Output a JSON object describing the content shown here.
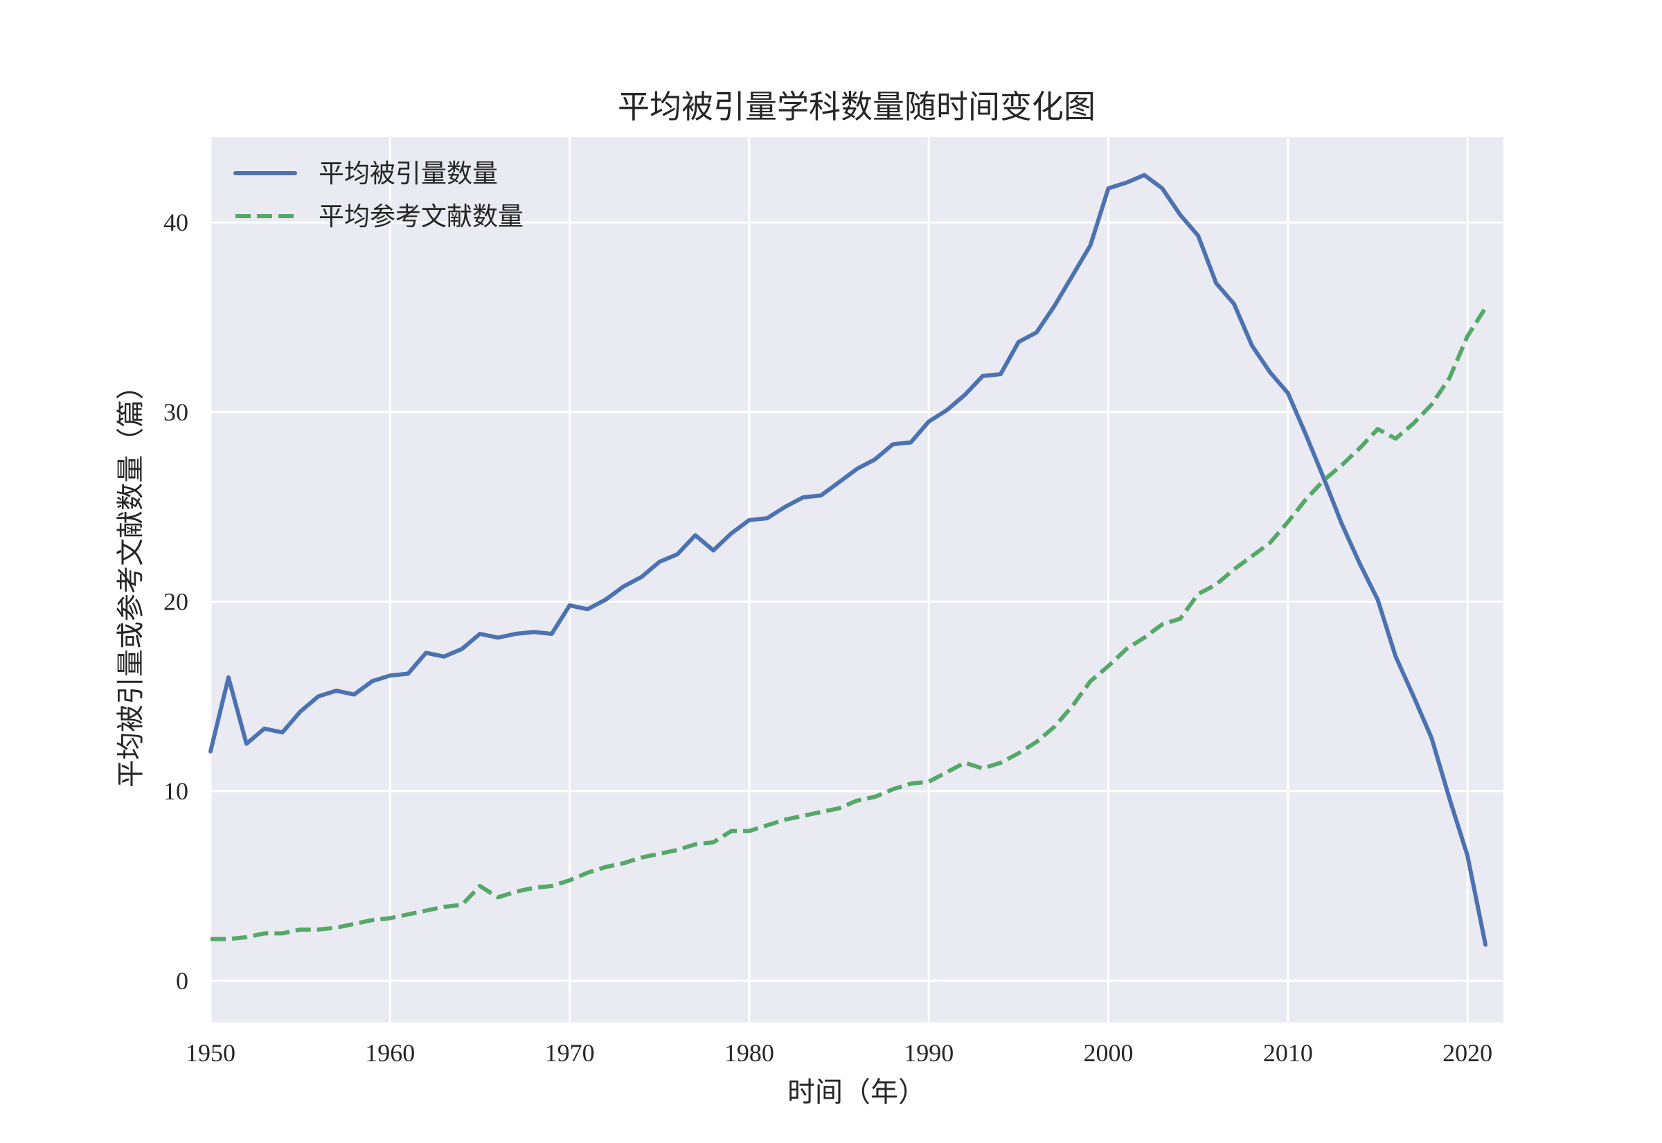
{
  "chart_data": {
    "type": "line",
    "title": "平均被引量学科数量随时间变化图",
    "xlabel": "时间（年）",
    "ylabel": "平均被引量或参考文献数量（篇）",
    "xlim": [
      1950,
      2022
    ],
    "ylim": [
      -2.2,
      44.5
    ],
    "xticks": [
      1950,
      1960,
      1970,
      1980,
      1990,
      2000,
      2010,
      2020
    ],
    "yticks": [
      0,
      10,
      20,
      30,
      40
    ],
    "grid": true,
    "background_color": "#eaeaf2",
    "grid_color": "#ffffff",
    "legend_position": "top-left",
    "x": [
      1950,
      1951,
      1952,
      1953,
      1954,
      1955,
      1956,
      1957,
      1958,
      1959,
      1960,
      1961,
      1962,
      1963,
      1964,
      1965,
      1966,
      1967,
      1968,
      1969,
      1970,
      1971,
      1972,
      1973,
      1974,
      1975,
      1976,
      1977,
      1978,
      1979,
      1980,
      1981,
      1982,
      1983,
      1984,
      1985,
      1986,
      1987,
      1988,
      1989,
      1990,
      1991,
      1992,
      1993,
      1994,
      1995,
      1996,
      1997,
      1998,
      1999,
      2000,
      2001,
      2002,
      2003,
      2004,
      2005,
      2006,
      2007,
      2008,
      2009,
      2010,
      2011,
      2012,
      2013,
      2014,
      2015,
      2016,
      2017,
      2018,
      2019,
      2020,
      2021
    ],
    "series": [
      {
        "name": "平均被引量数量",
        "color": "#4c72b0",
        "style": "solid",
        "values": [
          12.1,
          16.0,
          12.5,
          13.3,
          13.1,
          14.2,
          15.0,
          15.3,
          15.1,
          15.8,
          16.1,
          16.2,
          17.3,
          17.1,
          17.5,
          18.3,
          18.1,
          18.3,
          18.4,
          18.3,
          19.8,
          19.6,
          20.1,
          20.8,
          21.3,
          22.1,
          22.5,
          23.5,
          22.7,
          23.6,
          24.3,
          24.4,
          25.0,
          25.5,
          25.6,
          26.3,
          27.0,
          27.5,
          28.3,
          28.4,
          29.5,
          30.1,
          30.9,
          31.9,
          32.0,
          33.7,
          34.2,
          35.6,
          37.2,
          38.8,
          41.8,
          42.1,
          42.5,
          41.8,
          40.4,
          39.3,
          36.8,
          35.7,
          33.5,
          32.1,
          31.0,
          28.8,
          26.5,
          24.1,
          22.0,
          20.1,
          17.1,
          15.0,
          12.8,
          9.6,
          6.6,
          1.9
        ]
      },
      {
        "name": "平均参考文献数量",
        "color": "#55a868",
        "style": "dashed",
        "values": [
          2.2,
          2.2,
          2.3,
          2.5,
          2.5,
          2.7,
          2.7,
          2.8,
          3.0,
          3.2,
          3.3,
          3.5,
          3.7,
          3.9,
          4.0,
          5.0,
          4.4,
          4.7,
          4.9,
          5.0,
          5.3,
          5.7,
          6.0,
          6.2,
          6.5,
          6.7,
          6.9,
          7.2,
          7.3,
          7.9,
          7.9,
          8.2,
          8.5,
          8.7,
          8.9,
          9.1,
          9.5,
          9.7,
          10.1,
          10.4,
          10.5,
          11.0,
          11.5,
          11.2,
          11.5,
          12.0,
          12.6,
          13.4,
          14.5,
          15.8,
          16.6,
          17.5,
          18.1,
          18.8,
          19.1,
          20.4,
          20.9,
          21.7,
          22.4,
          23.1,
          24.2,
          25.4,
          26.4,
          27.2,
          28.1,
          29.1,
          28.6,
          29.4,
          30.4,
          31.8,
          34.0,
          35.5
        ]
      }
    ]
  }
}
